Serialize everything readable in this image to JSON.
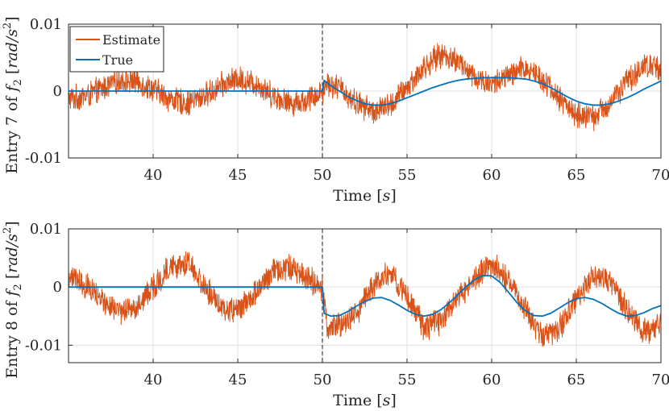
{
  "chart_data": [
    {
      "type": "line",
      "title": "",
      "xlabel": "Time [s]",
      "ylabel": "Entry 7 of f_2 [rad/s^2]",
      "xlim": [
        35,
        70
      ],
      "ylim": [
        -0.01,
        0.01
      ],
      "xticks": [
        "40",
        "45",
        "50",
        "55",
        "60",
        "65",
        "70"
      ],
      "yticks": [
        "0.01",
        "0",
        "-0.01"
      ],
      "event_x": 50,
      "legend": [
        "Estimate",
        "True"
      ],
      "series": [
        {
          "name": "True",
          "color": "#0072BD",
          "x": [
            35,
            50,
            50.1,
            50.5,
            51,
            51.5,
            52,
            52.5,
            53,
            53.5,
            54,
            54.5,
            55,
            55.5,
            56,
            56.5,
            57,
            57.5,
            58,
            58.5,
            59,
            59.5,
            60,
            60.5,
            61,
            61.5,
            62,
            62.5,
            63,
            63.5,
            64,
            64.5,
            65,
            65.5,
            66,
            66.5,
            67,
            67.5,
            68,
            68.5,
            69,
            69.5,
            70
          ],
          "y": [
            0,
            0,
            0.0016,
            0.0008,
            0.0,
            -0.0008,
            -0.0014,
            -0.0019,
            -0.0021,
            -0.0021,
            -0.0019,
            -0.0015,
            -0.001,
            -0.0005,
            0.0,
            0.0005,
            0.0009,
            0.0013,
            0.0016,
            0.0018,
            0.0019,
            0.002,
            0.002,
            0.002,
            0.002,
            0.0019,
            0.0018,
            0.0015,
            0.0011,
            0.0005,
            -0.0002,
            -0.0009,
            -0.0015,
            -0.0019,
            -0.0021,
            -0.0021,
            -0.0019,
            -0.0015,
            -0.001,
            -0.0004,
            0.0003,
            0.0009,
            0.0015
          ]
        },
        {
          "name": "Estimate",
          "color": "#D95319",
          "x": [
            35,
            36,
            37,
            38,
            39,
            40,
            41,
            42,
            43,
            44,
            45,
            46,
            47,
            48,
            49,
            50,
            50.3,
            51,
            52,
            53,
            54,
            55,
            56,
            57,
            58,
            59,
            60,
            61,
            62,
            63,
            64,
            65,
            66,
            67,
            68,
            69,
            70
          ],
          "y": [
            -0.0012,
            -0.0008,
            0.0004,
            0.0016,
            0.0015,
            0.0003,
            -0.0012,
            -0.0018,
            -0.0008,
            0.0008,
            0.0018,
            0.0012,
            -0.0005,
            -0.0018,
            -0.0015,
            0.0,
            0.0012,
            0.0005,
            -0.0018,
            -0.003,
            -0.0022,
            0.0005,
            0.0035,
            0.0055,
            0.0045,
            0.002,
            0.001,
            0.0022,
            0.0035,
            0.002,
            -0.0012,
            -0.0035,
            -0.004,
            -0.0018,
            0.0015,
            0.0038,
            0.0035
          ],
          "noise_amplitude": 0.0022
        }
      ]
    },
    {
      "type": "line",
      "title": "",
      "xlabel": "Time [s]",
      "ylabel": "Entry 8 of f_2 [rad/s^2]",
      "xlim": [
        35,
        70
      ],
      "ylim": [
        -0.013,
        0.01
      ],
      "xticks": [
        "40",
        "45",
        "50",
        "55",
        "60",
        "65",
        "70"
      ],
      "yticks": [
        "0.01",
        "0",
        "-0.01"
      ],
      "event_x": 50,
      "series": [
        {
          "name": "True",
          "color": "#0072BD",
          "x": [
            35,
            50,
            50.1,
            50.5,
            51,
            51.5,
            52,
            52.5,
            53,
            53.5,
            54,
            54.5,
            55,
            55.5,
            56,
            56.5,
            57,
            57.5,
            58,
            58.5,
            59,
            59.5,
            60,
            60.5,
            61,
            61.5,
            62,
            62.5,
            63,
            63.5,
            64,
            64.5,
            65,
            65.5,
            66,
            66.5,
            67,
            67.5,
            68,
            68.5,
            69,
            69.5,
            70
          ],
          "y": [
            0,
            0,
            -0.0045,
            -0.005,
            -0.0049,
            -0.0042,
            -0.0033,
            -0.0025,
            -0.0019,
            -0.0018,
            -0.0023,
            -0.0031,
            -0.004,
            -0.0047,
            -0.005,
            -0.0047,
            -0.0039,
            -0.0027,
            -0.0013,
            0.0001,
            0.0013,
            0.002,
            0.0019,
            0.0008,
            -0.0009,
            -0.0027,
            -0.0041,
            -0.0049,
            -0.005,
            -0.0045,
            -0.0036,
            -0.0027,
            -0.002,
            -0.0018,
            -0.0021,
            -0.0028,
            -0.0037,
            -0.0045,
            -0.005,
            -0.0049,
            -0.0044,
            -0.0037,
            -0.0032
          ]
        },
        {
          "name": "Estimate",
          "color": "#D95319",
          "x": [
            35,
            36,
            37,
            38,
            39,
            40,
            41,
            42,
            43,
            44,
            45,
            46,
            47,
            48,
            49,
            50,
            50.3,
            51,
            52,
            53,
            54,
            55,
            56,
            57,
            58,
            59,
            60,
            61,
            62,
            63,
            64,
            65,
            66,
            67,
            68,
            69,
            70
          ],
          "y": [
            0.002,
            0.0005,
            -0.0025,
            -0.0045,
            -0.0035,
            0.0,
            0.0035,
            0.004,
            0.0005,
            -0.0035,
            -0.004,
            -0.001,
            0.0025,
            0.0035,
            0.002,
            0.0,
            -0.007,
            -0.0065,
            -0.0045,
            0.0005,
            0.0025,
            -0.0015,
            -0.007,
            -0.006,
            -0.002,
            0.0015,
            0.004,
            0.001,
            -0.004,
            -0.0085,
            -0.007,
            -0.002,
            0.002,
            0.001,
            -0.004,
            -0.008,
            -0.006
          ],
          "noise_amplitude": 0.0026
        }
      ]
    }
  ]
}
